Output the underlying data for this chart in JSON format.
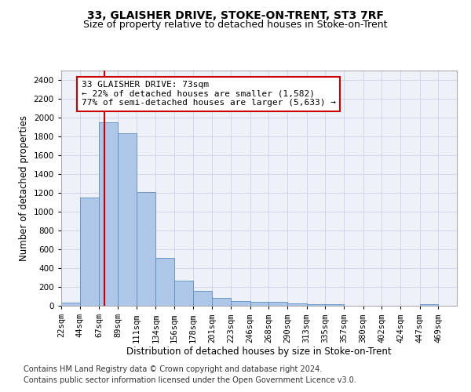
{
  "title": "33, GLAISHER DRIVE, STOKE-ON-TRENT, ST3 7RF",
  "subtitle": "Size of property relative to detached houses in Stoke-on-Trent",
  "xlabel": "Distribution of detached houses by size in Stoke-on-Trent",
  "ylabel": "Number of detached properties",
  "bin_labels": [
    "22sqm",
    "44sqm",
    "67sqm",
    "89sqm",
    "111sqm",
    "134sqm",
    "156sqm",
    "178sqm",
    "201sqm",
    "223sqm",
    "246sqm",
    "268sqm",
    "290sqm",
    "313sqm",
    "335sqm",
    "357sqm",
    "380sqm",
    "402sqm",
    "424sqm",
    "447sqm",
    "469sqm"
  ],
  "bin_edges": [
    22,
    44,
    67,
    89,
    111,
    134,
    156,
    178,
    201,
    223,
    246,
    268,
    290,
    313,
    335,
    357,
    380,
    402,
    424,
    447,
    469,
    491
  ],
  "bar_values": [
    30,
    1150,
    1950,
    1830,
    1210,
    510,
    265,
    155,
    80,
    50,
    45,
    40,
    25,
    20,
    15,
    0,
    0,
    0,
    0,
    20,
    0
  ],
  "bar_color": "#aec6e8",
  "bar_edge_color": "#5a8fc0",
  "grid_color": "#d0d8e8",
  "bg_color": "#eef2f8",
  "property_size": 73,
  "red_line_color": "#cc0000",
  "annotation_line1": "33 GLAISHER DRIVE: 73sqm",
  "annotation_line2": "← 22% of detached houses are smaller (1,582)",
  "annotation_line3": "77% of semi-detached houses are larger (5,633) →",
  "annotation_box_color": "#ffffff",
  "annotation_border_color": "#cc0000",
  "ylim": [
    0,
    2500
  ],
  "yticks": [
    0,
    200,
    400,
    600,
    800,
    1000,
    1200,
    1400,
    1600,
    1800,
    2000,
    2200,
    2400
  ],
  "footer1": "Contains HM Land Registry data © Crown copyright and database right 2024.",
  "footer2": "Contains public sector information licensed under the Open Government Licence v3.0.",
  "title_fontsize": 10,
  "subtitle_fontsize": 9,
  "axis_label_fontsize": 8.5,
  "tick_fontsize": 7.5,
  "annotation_fontsize": 8,
  "footer_fontsize": 7
}
